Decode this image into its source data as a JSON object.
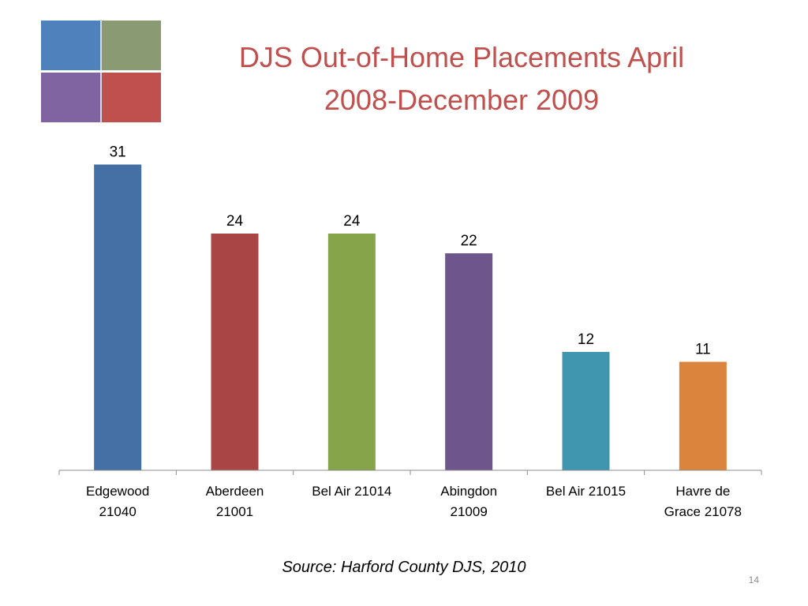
{
  "slide": {
    "title_line1": "DJS Out-of-Home Placements April",
    "title_line2": "2008-December 2009",
    "source": "Source: Harford County DJS, 2010",
    "slide_number": "14"
  },
  "logo": {
    "colors": [
      "#4f81bd",
      "#8a9a72",
      "#8064a2",
      "#c0504d"
    ]
  },
  "chart_data": {
    "type": "bar",
    "title": "",
    "xlabel": "",
    "ylabel": "",
    "categories": [
      [
        "Edgewood",
        "21040"
      ],
      [
        "Aberdeen",
        "21001"
      ],
      [
        "Bel Air 21014"
      ],
      [
        "Abingdon",
        "21009"
      ],
      [
        "Bel Air 21015"
      ],
      [
        "Havre de",
        "Grace 21078"
      ]
    ],
    "values": [
      31,
      24,
      24,
      22,
      12,
      11
    ],
    "colors": [
      "#4470a6",
      "#a94645",
      "#86a44a",
      "#6e568c",
      "#4096af",
      "#db843d"
    ],
    "ylim": [
      0,
      35
    ],
    "grid": false,
    "legend": "none",
    "data_labels": true
  }
}
